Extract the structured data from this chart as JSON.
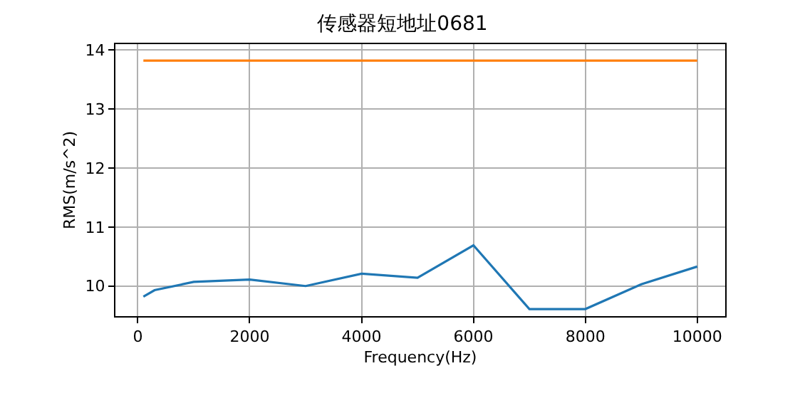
{
  "chart_data": {
    "type": "line",
    "title": "传感器短地址0681",
    "xlabel": "Frequency(Hz)",
    "ylabel": "RMS(m/s^2)",
    "series": [
      {
        "color": "#1f77b4",
        "x": [
          100,
          300,
          1000,
          2000,
          3000,
          4000,
          5000,
          6000,
          7000,
          8000,
          9000,
          10000
        ],
        "values": [
          9.82,
          9.93,
          10.07,
          10.11,
          10.0,
          10.21,
          10.14,
          10.69,
          9.61,
          9.61,
          10.03,
          10.33
        ]
      },
      {
        "color": "#ff7f0e",
        "x": [
          100,
          10000
        ],
        "values": [
          13.82,
          13.82
        ]
      }
    ],
    "xlim": [
      -400,
      10500
    ],
    "xticks": [
      0,
      2000,
      4000,
      6000,
      8000,
      10000
    ],
    "ylim": [
      9.49,
      14.1
    ],
    "yticks": [
      10,
      11,
      12,
      13,
      14
    ],
    "grid": true
  }
}
